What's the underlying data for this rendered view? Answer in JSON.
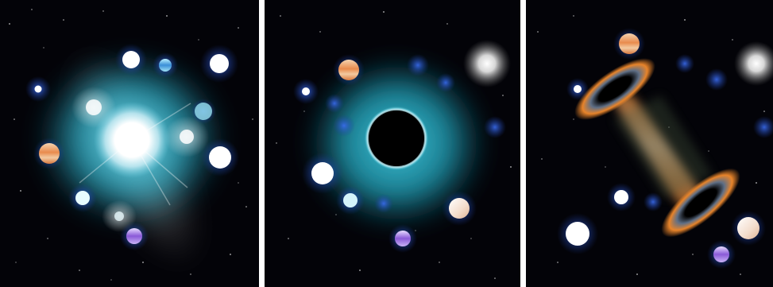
{
  "panels": [
    {
      "name": "exploding-star-panel",
      "icon": "supernova-icon"
    },
    {
      "name": "black-hole-panel",
      "icon": "black-hole-icon"
    },
    {
      "name": "colliding-black-holes-panel",
      "icon": "binary-black-hole-icon"
    }
  ],
  "colors": {
    "background": "#030308",
    "cyan_glow": "#2fb6cf",
    "star_white": "#ffffff",
    "planet_orange": "#e98b4d",
    "planet_purple": "#8a5ad8",
    "halo_blue": "#2a5bd6",
    "disk_orange": "#e8842a",
    "divider": "#ffffff"
  }
}
